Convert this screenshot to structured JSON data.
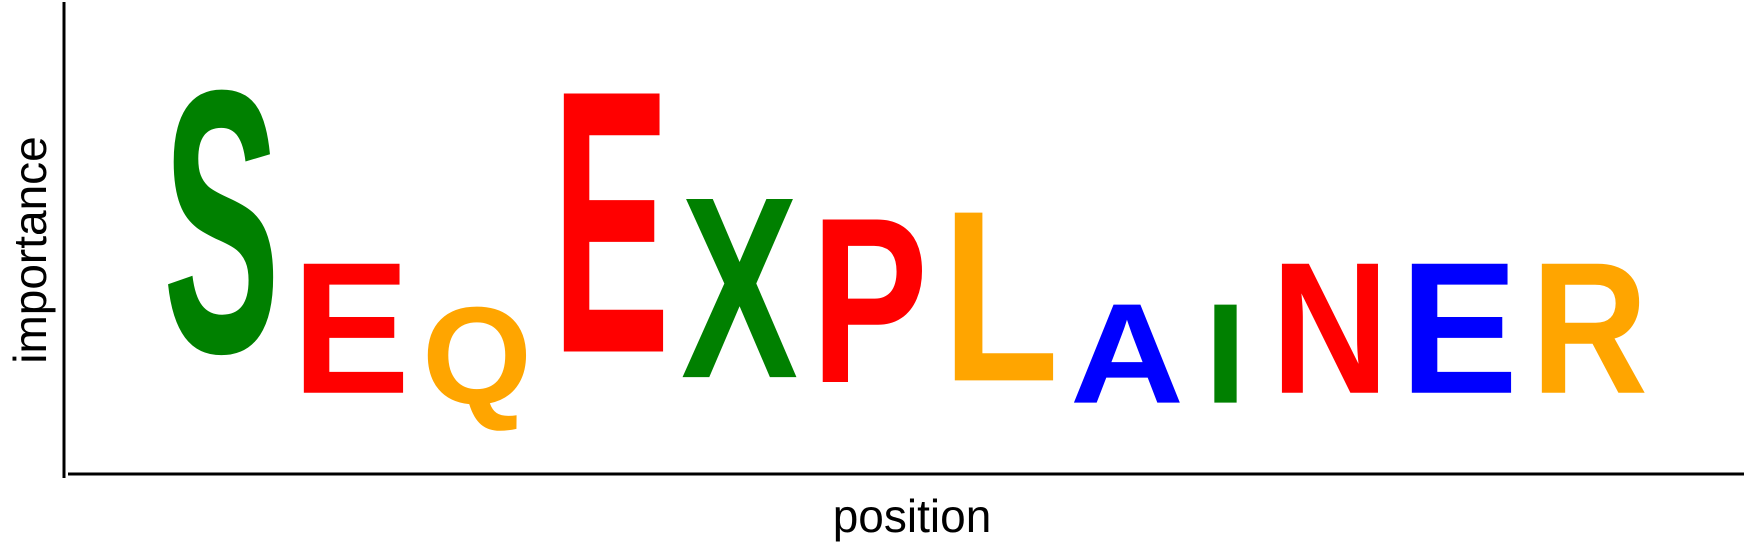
{
  "chart_data": {
    "type": "sequence-logo",
    "xlabel": "position",
    "ylabel": "importance",
    "y_axis_ticks": false,
    "letters": [
      {
        "char": "S",
        "value": 1.0,
        "color": "#008000"
      },
      {
        "char": "E",
        "value": 0.5,
        "color": "#ff0000"
      },
      {
        "char": "Q",
        "value": 0.37,
        "color": "#ffa500"
      },
      {
        "char": "E",
        "value": 1.0,
        "color": "#ff0000"
      },
      {
        "char": "X",
        "value": 0.69,
        "color": "#008000"
      },
      {
        "char": "P",
        "value": 0.63,
        "color": "#ff0000"
      },
      {
        "char": "L",
        "value": 0.65,
        "color": "#ffa500"
      },
      {
        "char": "A",
        "value": 0.38,
        "color": "#0000ff"
      },
      {
        "char": "I",
        "value": 0.38,
        "color": "#008000"
      },
      {
        "char": "N",
        "value": 0.5,
        "color": "#ff0000"
      },
      {
        "char": "E",
        "value": 0.5,
        "color": "#0000ff"
      },
      {
        "char": "R",
        "value": 0.5,
        "color": "#ffa500"
      }
    ]
  }
}
